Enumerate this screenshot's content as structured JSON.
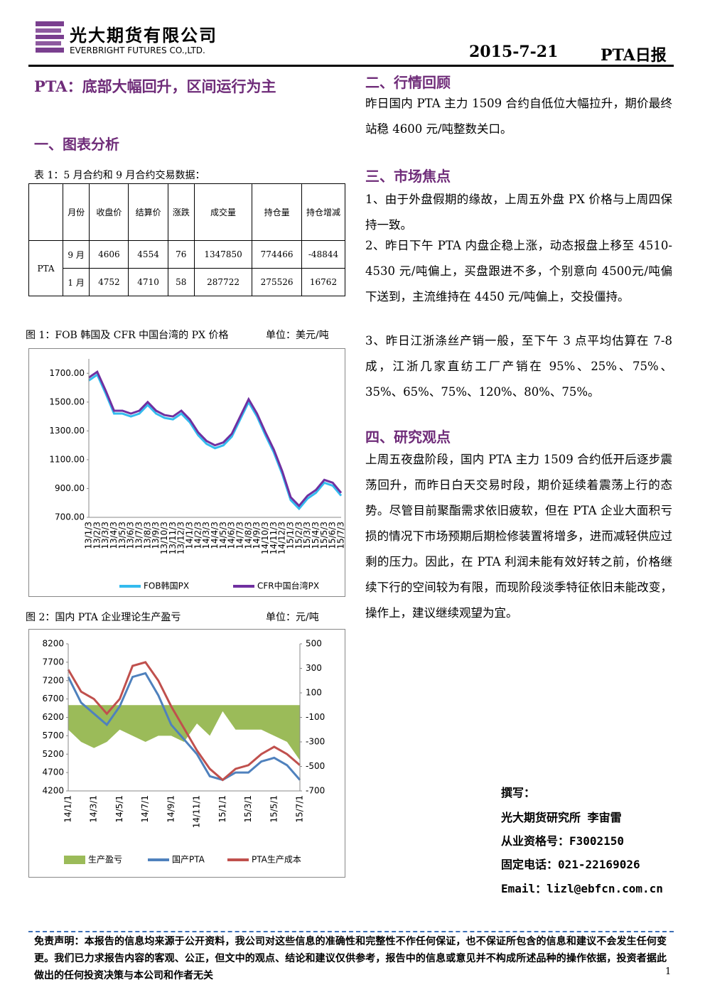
{
  "header": {
    "company": "光大期货有限公司",
    "company_en": "EVERBRIGHT FUTURES CO.,LTD.",
    "date": "2015-7-21",
    "report": "PTA日报"
  },
  "title": "PTA：底部大幅回升，区间运行为主",
  "section1": "一、图表分析",
  "table": {
    "caption": "表 1：5 月合约和 9 月合约交易数据：",
    "header": [
      "月份",
      "收盘价",
      "结算价",
      "涨跌",
      "成交量",
      "持仓量",
      "持仓增减"
    ],
    "group": "PTA",
    "rows": [
      [
        "9 月",
        4606,
        4554,
        76,
        1347850,
        774466,
        -48844
      ],
      [
        "1 月",
        4752,
        4710,
        58,
        287722,
        275526,
        16762
      ]
    ]
  },
  "figure1": {
    "type": "line",
    "caption": "图 1：FOB 韩国及 CFR 中国台湾的 PX 价格",
    "unit": "单位：美元/吨",
    "categories": [
      "13/1/3",
      "13/2/3",
      "13/3/3",
      "13/4/3",
      "13/5/3",
      "13/6/3",
      "13/7/3",
      "13/8/3",
      "13/9/3",
      "13/10/3",
      "13/11/3",
      "13/12/3",
      "14/1/3",
      "14/2/3",
      "14/3/3",
      "14/4/3",
      "14/5/3",
      "14/6/3",
      "14/7/3",
      "14/8/3",
      "14/9/3",
      "14/10/3",
      "14/11/3",
      "14/12/3",
      "15/1/3",
      "15/2/3",
      "15/3/3",
      "15/4/3",
      "15/5/3",
      "15/6/3",
      "15/7/3"
    ],
    "series": [
      {
        "name": "FOB韩国PX",
        "color": "#33bbee",
        "values": [
          1650,
          1690,
          1560,
          1420,
          1420,
          1400,
          1420,
          1480,
          1420,
          1390,
          1380,
          1420,
          1360,
          1270,
          1210,
          1180,
          1200,
          1260,
          1380,
          1500,
          1400,
          1270,
          1150,
          1000,
          820,
          760,
          830,
          870,
          940,
          920,
          850
        ]
      },
      {
        "name": "CFR中国台湾PX",
        "color": "#7030a0",
        "values": [
          1670,
          1710,
          1580,
          1440,
          1440,
          1420,
          1440,
          1500,
          1440,
          1410,
          1400,
          1440,
          1380,
          1290,
          1230,
          1200,
          1220,
          1280,
          1400,
          1520,
          1420,
          1290,
          1170,
          1020,
          840,
          780,
          850,
          890,
          960,
          940,
          870
        ]
      }
    ],
    "ylim": [
      700,
      1800
    ],
    "yticks": [
      {
        "value": 700,
        "label": "700.00"
      },
      {
        "value": 900,
        "label": "900.00"
      },
      {
        "value": 1100,
        "label": "1100.00"
      },
      {
        "value": 1300,
        "label": "1300.00"
      },
      {
        "value": 1500,
        "label": "1500.00"
      },
      {
        "value": 1700,
        "label": "1700.00"
      }
    ]
  },
  "figure2": {
    "type": "line",
    "caption": "图 2：国内 PTA 企业理论生产盈亏",
    "unit": "单位：元/吨",
    "categories": [
      "14/1/1",
      null,
      "14/3/1",
      null,
      "14/5/1",
      null,
      "14/7/1",
      null,
      "14/9/1",
      null,
      "14/11/1",
      null,
      "15/1/1",
      null,
      "15/3/1",
      null,
      "15/5/1",
      null,
      "15/7/1"
    ],
    "series": [
      {
        "name": "生产盈亏",
        "color": "#9bbb59",
        "kind": "area",
        "axis": "y2",
        "values": [
          -200,
          -300,
          -350,
          -300,
          -200,
          -250,
          -300,
          -250,
          -250,
          -300,
          -150,
          -250,
          -50,
          -200,
          -200,
          -200,
          -250,
          -300,
          -450
        ]
      },
      {
        "name": "国产PTA",
        "color": "#4f81bd",
        "values": [
          7300,
          6600,
          6300,
          6000,
          6500,
          7300,
          7400,
          6800,
          6000,
          5600,
          5200,
          4600,
          4500,
          4700,
          4700,
          5000,
          5100,
          4900,
          4500
        ]
      },
      {
        "name": "PTA生产成本",
        "color": "#c0504d",
        "values": [
          7500,
          6900,
          6700,
          6300,
          6700,
          7600,
          7700,
          7200,
          6500,
          5900,
          5300,
          4800,
          4500,
          4800,
          4900,
          5200,
          5400,
          5200,
          4900
        ]
      }
    ],
    "ylim": [
      4200,
      8200
    ],
    "yticks": [
      4200,
      4700,
      5200,
      5700,
      6200,
      6700,
      7200,
      7700,
      8200
    ],
    "y2lim": [
      -700,
      500
    ],
    "y2ticks": [
      -700,
      -500,
      -300,
      -100,
      100,
      300,
      500
    ]
  },
  "section2": {
    "heading": "二、行情回顾",
    "text": "昨日国内 PTA 主力 1509 合约自低位大幅拉升，期价最终站稳 4600 元/吨整数关口。"
  },
  "section3": {
    "heading": "三、市场焦点",
    "items": [
      "1、由于外盘假期的缘故，上周五外盘 PX 价格与上周四保持一致。",
      "2、昨日下午 PTA 内盘企稳上涨，动态报盘上移至 4510-4530 元/吨偏上，买盘跟进不多，个别意向 4500元/吨偏下送到，主流维持在 4450 元/吨偏上，交投僵持。",
      "3、昨日江浙涤丝产销一般，至下午 3 点平均估算在 7-8 成，江浙几家直纺工厂产销在 95%、25%、75%、35%、65%、75%、120%、80%、75%。"
    ]
  },
  "section4": {
    "heading": "四、研究观点",
    "text": "上周五夜盘阶段，国内 PTA 主力 1509 合约低开后逐步震荡回升，而昨日白天交易时段，期价延续着震荡上行的态势。尽管目前聚酯需求依旧疲软，但在 PTA 企业大面积亏损的情况下市场预期后期检修装置将增多，进而减轻供应过剩的压力。因此，在 PTA 利润未能有效好转之前，价格继续下行的空间较为有限，而现阶段淡季特征依旧未能改变，操作上，建议继续观望为宜。"
  },
  "author": {
    "label": "撰写：",
    "name": "光大期货研究所 李宙雷",
    "license": "从业资格号：F3002150",
    "phone": "固定电话：021-22169026",
    "email": "Email：lizl@ebfcn.com.cn"
  },
  "disclaimer": "免责声明：本报告的信息均来源于公开资料，我公司对这些信息的准确性和完整性不作任何保证，也不保证所包含的信息和建议不会发生任何变更。我们已力求报告内容的客观、公正，但文中的观点、结论和建议仅供参考，报告中的信息或意见并不构成所述品种的操作依据，投资者据此做出的任何投资决策与本公司和作者无关",
  "page": "1"
}
